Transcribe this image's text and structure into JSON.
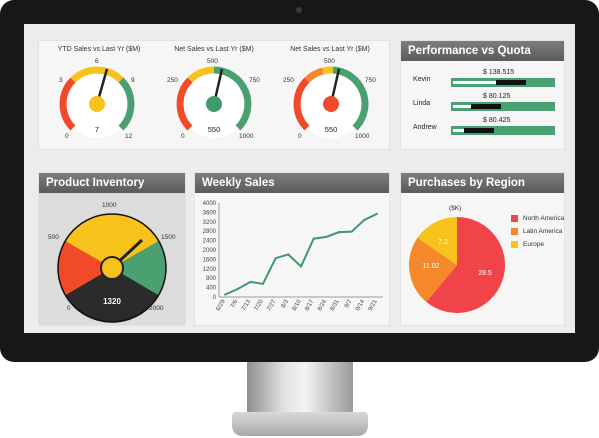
{
  "colors": {
    "red": "#f04a2a",
    "orange": "#f5882a",
    "yellow": "#f8c21c",
    "green": "#4aa070",
    "darkgreen": "#3e9a6a"
  },
  "gauges": [
    {
      "title": "YTD Sales vs Last Yr ($M)",
      "min": "0",
      "max": "12",
      "top": "6",
      "value": "7",
      "ticks": {
        "left": "3",
        "right": "9"
      }
    },
    {
      "title": "Net Sales vs Last Yr ($M)",
      "min": "0",
      "max": "1000",
      "top": "500",
      "value": "550",
      "ticks": {
        "left": "250",
        "right": "750"
      }
    },
    {
      "title": "Net Sales vs Last Yr ($M)",
      "min": "0",
      "max": "1000",
      "top": "500",
      "value": "550",
      "ticks": {
        "left": "250",
        "right": "750"
      }
    }
  ],
  "performance": {
    "title": "Performance vs Quota",
    "rows": [
      {
        "name": "Kevin",
        "value": "$ 138.515",
        "fraction": 0.73
      },
      {
        "name": "Linda",
        "value": "$ 80.125",
        "fraction": 0.48
      },
      {
        "name": "Andrew",
        "value": "$ 80.425",
        "fraction": 0.41
      }
    ]
  },
  "inventory": {
    "title": "Product Inventory",
    "labels": [
      "0",
      "500",
      "1000",
      "1500",
      "2000"
    ],
    "value": "1320"
  },
  "weekly": {
    "title": "Weekly Sales"
  },
  "region": {
    "title": "Purchases by Region",
    "unit": "($K)",
    "legend": [
      "North America",
      "Latin America",
      "Europe"
    ]
  },
  "chart_data": [
    {
      "type": "line",
      "title": "Weekly Sales",
      "x": [
        "6/29",
        "7/6",
        "7/13",
        "7/20",
        "7/27",
        "8/3",
        "8/10",
        "8/17",
        "8/24",
        "8/31",
        "9/7",
        "9/14",
        "9/21"
      ],
      "values": [
        100,
        340,
        640,
        560,
        1650,
        1810,
        1300,
        2480,
        2560,
        2760,
        2780,
        3280,
        3540
      ],
      "ylim": [
        0,
        4000
      ],
      "yticks": [
        0,
        400,
        800,
        1200,
        1600,
        2000,
        2400,
        2800,
        3200,
        3600,
        4000
      ],
      "ytick_labels": [
        "0",
        "400",
        "800",
        "1200",
        "1600",
        "2000",
        "2400",
        "2800",
        "3200",
        "3600",
        "4000"
      ],
      "grid": false
    },
    {
      "type": "pie",
      "title": "Purchases by Region",
      "unit": "($K)",
      "categories": [
        "North America",
        "Latin America",
        "Europe"
      ],
      "values": [
        28.5,
        11.02,
        7.2
      ],
      "labels": [
        "28.5",
        "11.02",
        "7.2"
      ],
      "colors": [
        "#f04448",
        "#f5882a",
        "#f8c21c"
      ],
      "legend": "right"
    }
  ]
}
